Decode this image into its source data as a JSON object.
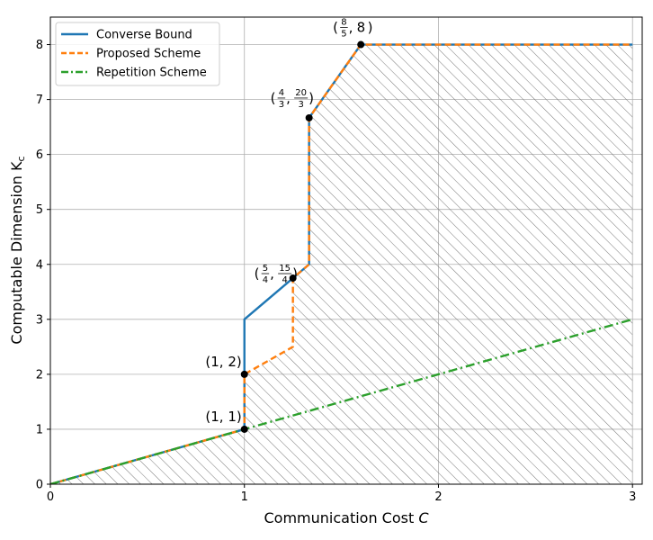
{
  "chart_data": {
    "type": "line",
    "title": "",
    "xlabel": "Communication Cost ",
    "xlabel_var": "C",
    "ylabel": "Computable Dimension K",
    "ylabel_sub": "c",
    "xlim": [
      0,
      3.05
    ],
    "ylim": [
      0,
      8.5
    ],
    "xticks": [
      0,
      1,
      2,
      3
    ],
    "yticks": [
      0,
      1,
      2,
      3,
      4,
      5,
      6,
      7,
      8
    ],
    "grid": true,
    "legend_position": "top-left",
    "hatched_region": "achievable region under Proposed Scheme",
    "series": [
      {
        "name": "Converse Bound",
        "color": "#1f77b4",
        "dash": "solid",
        "x": [
          0,
          1,
          1,
          1.25,
          1.3333,
          1.3333,
          1.6,
          3
        ],
        "y": [
          0,
          1,
          3,
          3.75,
          4,
          6.6667,
          8,
          8
        ]
      },
      {
        "name": "Proposed Scheme",
        "color": "#ff7f0e",
        "dash": "dashed",
        "x": [
          0,
          1,
          1,
          1.25,
          1.25,
          1.3333,
          1.3333,
          1.6,
          3
        ],
        "y": [
          0,
          1,
          2,
          2.5,
          3.75,
          4,
          6.6667,
          8,
          8
        ]
      },
      {
        "name": "Repetition Scheme",
        "color": "#2ca02c",
        "dash": "dashdot",
        "x": [
          0,
          3
        ],
        "y": [
          0,
          3
        ]
      }
    ],
    "points": [
      {
        "x": 1,
        "y": 1,
        "label": "(1, 1)"
      },
      {
        "x": 1,
        "y": 2,
        "label": "(1, 2)"
      },
      {
        "x": 1.25,
        "y": 3.75,
        "label": "(5/4, 15/4)",
        "frac": [
          "5",
          "4",
          "15",
          "4"
        ]
      },
      {
        "x": 1.3333,
        "y": 6.6667,
        "label": "(4/3, 20/3)",
        "frac": [
          "4",
          "3",
          "20",
          "3"
        ]
      },
      {
        "x": 1.6,
        "y": 8,
        "label": "(8/5, 8)",
        "frac": [
          "8",
          "5"
        ],
        "tail": "8"
      }
    ]
  }
}
